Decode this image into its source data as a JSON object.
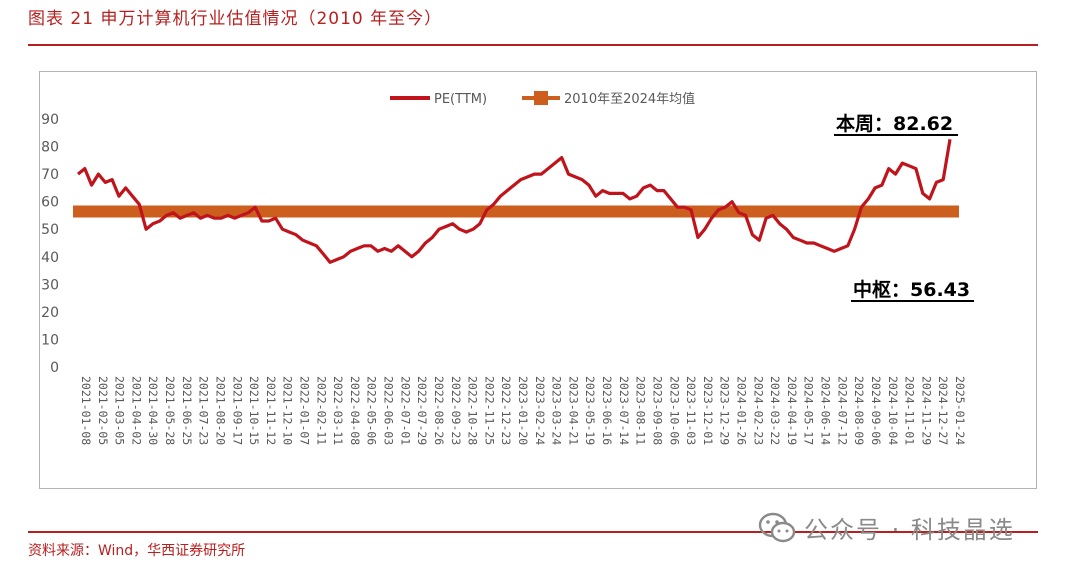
{
  "figure": {
    "title": "图表 21 申万计算机行业估值情况（2010 年至今）",
    "source": "资料来源：Wind，华西证券研究所",
    "watermark": "公众号 · 科技晶选",
    "watermark_icon": "wechat-icon"
  },
  "colors": {
    "accent": "#b8201f",
    "pe_line": "#c0141c",
    "mean_line": "#cc5f1d",
    "axis_text": "#595959"
  },
  "chart_data": {
    "type": "line",
    "title": "",
    "xlabel": "",
    "ylabel": "",
    "ylim": [
      0,
      90
    ],
    "yticks": [
      0,
      10,
      20,
      30,
      40,
      50,
      60,
      70,
      80,
      90
    ],
    "grid": false,
    "legend_position": "top-center",
    "x_tick_labels": [
      "2021-01-08",
      "2021-02-05",
      "2021-03-05",
      "2021-04-02",
      "2021-04-30",
      "2021-05-28",
      "2021-06-25",
      "2021-07-23",
      "2021-08-20",
      "2021-09-17",
      "2021-10-15",
      "2021-11-12",
      "2021-12-10",
      "2022-01-07",
      "2022-02-11",
      "2022-03-11",
      "2022-04-08",
      "2022-05-06",
      "2022-06-03",
      "2022-07-01",
      "2022-07-29",
      "2022-08-26",
      "2022-09-23",
      "2022-10-28",
      "2022-11-25",
      "2022-12-23",
      "2023-01-20",
      "2023-02-24",
      "2023-03-24",
      "2023-04-21",
      "2023-05-19",
      "2023-06-16",
      "2023-07-14",
      "2023-08-11",
      "2023-09-08",
      "2023-10-06",
      "2023-11-03",
      "2023-12-01",
      "2023-12-29",
      "2024-01-26",
      "2024-02-23",
      "2024-03-22",
      "2024-04-19",
      "2024-05-17",
      "2024-06-14",
      "2024-07-12",
      "2024-08-09",
      "2024-09-06",
      "2024-10-04",
      "2024-11-01",
      "2024-11-29",
      "2024-12-27",
      "2025-01-24"
    ],
    "series": [
      {
        "name": "PE(TTM)",
        "type": "line",
        "values": [
          70,
          72,
          66,
          70,
          67,
          68,
          62,
          65,
          62,
          59,
          50,
          52,
          53,
          55,
          56,
          54,
          55,
          56,
          54,
          55,
          54,
          54,
          55,
          54,
          55,
          56,
          58,
          53,
          53,
          54,
          50,
          49,
          48,
          46,
          45,
          44,
          41,
          38,
          39,
          40,
          42,
          43,
          44,
          44,
          42,
          43,
          42,
          44,
          42,
          40,
          42,
          45,
          47,
          50,
          51,
          52,
          50,
          49,
          50,
          52,
          57,
          59,
          62,
          64,
          66,
          68,
          69,
          70,
          70,
          72,
          74,
          76,
          70,
          69,
          68,
          66,
          62,
          64,
          63,
          63,
          63,
          61,
          62,
          65,
          66,
          64,
          64,
          61,
          58,
          58,
          57,
          47,
          50,
          54,
          57,
          58,
          60,
          56,
          55,
          48,
          46,
          54,
          55,
          52,
          50,
          47,
          46,
          45,
          45,
          44,
          43,
          42,
          43,
          44,
          50,
          58,
          61,
          65,
          66,
          72,
          70,
          74,
          73,
          72,
          63,
          61,
          67,
          68,
          82.62
        ]
      },
      {
        "name": "2010年至2024年均值",
        "type": "line",
        "value": 56.43
      }
    ],
    "annotations": [
      {
        "text": "本周：82.62",
        "target": "last-point"
      },
      {
        "text": "中枢：56.43",
        "target": "mean-line"
      }
    ]
  }
}
